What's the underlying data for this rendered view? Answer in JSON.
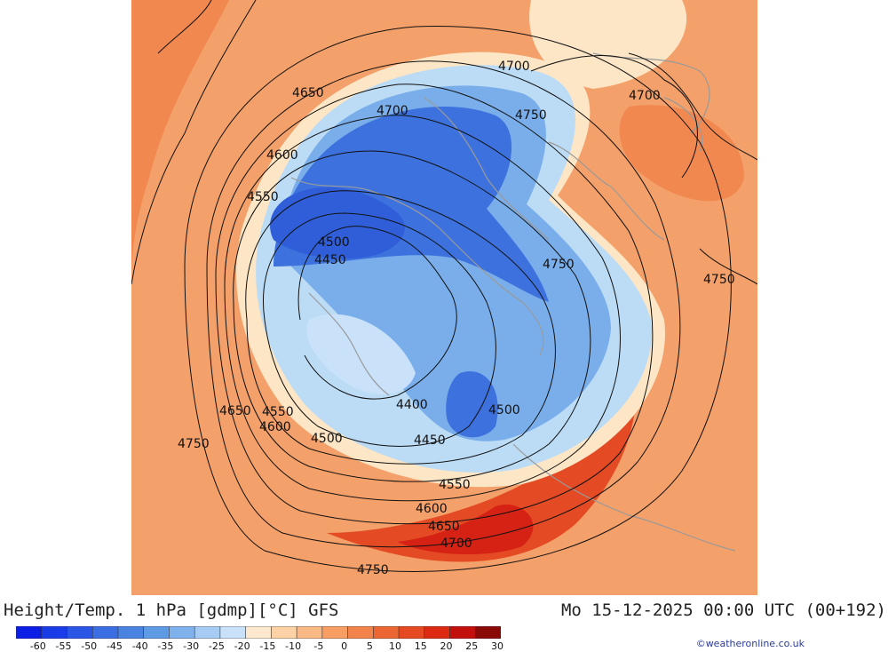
{
  "header": {
    "title": "Height/Temp. 1 hPa [gdmp][°C] GFS",
    "valid_time": "Mo 15-12-2025 00:00 UTC (00+192)"
  },
  "legend": {
    "tick_labels": [
      "-60",
      "-55",
      "-50",
      "-45",
      "-40",
      "-35",
      "-30",
      "-25",
      "-20",
      "-15",
      "-10",
      "-5",
      "0",
      "5",
      "10",
      "15",
      "20",
      "25",
      "30"
    ],
    "colors": [
      "#0a1ee6",
      "#1a3ce8",
      "#2a55e6",
      "#3a6ee2",
      "#4a84e0",
      "#5f9ae4",
      "#7fb2ec",
      "#a6ccf4",
      "#c9e2fa",
      "#fbe8cf",
      "#fcd2a6",
      "#f9b985",
      "#f69e64",
      "#f2834a",
      "#ec6632",
      "#e54a22",
      "#dc2a12",
      "#c3100c",
      "#8a0a08"
    ]
  },
  "map": {
    "contour_labels": [
      "4700",
      "4650",
      "4700",
      "4750",
      "4700",
      "4600",
      "4550",
      "4500",
      "4450",
      "4750",
      "4750",
      "4400",
      "4500",
      "4650",
      "4550",
      "4600",
      "4500",
      "4450",
      "4750",
      "4550",
      "4600",
      "4650",
      "4700",
      "4750"
    ],
    "colors": {
      "warm_bg": "#f4a06a",
      "warm_mid": "#f08850",
      "hot": "#e44a24",
      "hottest": "#d62214",
      "pale": "#fde6c6",
      "cold_light": "#bcdcf6",
      "cold_mid": "#7aaeea",
      "cold_deep": "#3d72de",
      "cold_core": "#2f5ed8",
      "contour": "#111111",
      "coast": "#9a9a9a"
    }
  },
  "credit": "©weatheronline.co.uk"
}
